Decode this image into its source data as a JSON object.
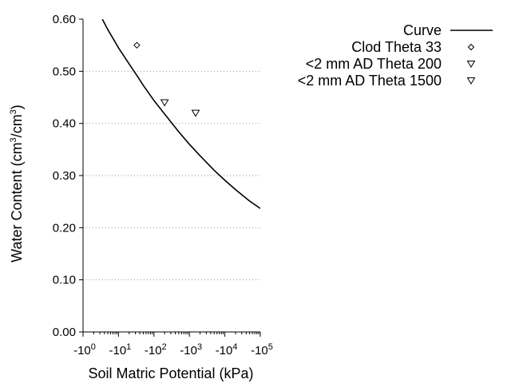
{
  "chart_data": {
    "type": "scatter",
    "xlabel": "Soil Matric Potential (kPa)",
    "ylabel": {
      "prefix": "Water Content (cm",
      "exp1": "3",
      "middle": "/cm",
      "exp2": "3",
      "suffix": ")"
    },
    "x_scale": "log",
    "xlim": [
      1,
      100000
    ],
    "ylim": [
      0,
      0.6
    ],
    "grid": "horizontal-dotted",
    "legend_position": "top-right",
    "x_ticks": [
      {
        "value": 1,
        "base": "-10",
        "exp": "0"
      },
      {
        "value": 10,
        "base": "-10",
        "exp": "1"
      },
      {
        "value": 100,
        "base": "-10",
        "exp": "2"
      },
      {
        "value": 1000,
        "base": "-10",
        "exp": "3"
      },
      {
        "value": 10000,
        "base": "-10",
        "exp": "4"
      },
      {
        "value": 100000,
        "base": "-10",
        "exp": "5"
      }
    ],
    "y_ticks": [
      {
        "value": 0.0,
        "label": "0.00"
      },
      {
        "value": 0.1,
        "label": "0.10"
      },
      {
        "value": 0.2,
        "label": "0.20"
      },
      {
        "value": 0.3,
        "label": "0.30"
      },
      {
        "value": 0.4,
        "label": "0.40"
      },
      {
        "value": 0.5,
        "label": "0.50"
      },
      {
        "value": 0.6,
        "label": "0.60"
      }
    ],
    "series": [
      {
        "name": "Curve",
        "kind": "line",
        "color": "#000000",
        "x": [
          3.5,
          5,
          10,
          20,
          33,
          50,
          100,
          200,
          500,
          1000,
          2000,
          5000,
          10000,
          20000,
          50000,
          100000
        ],
        "y": [
          0.6,
          0.58,
          0.545,
          0.514,
          0.492,
          0.473,
          0.444,
          0.418,
          0.384,
          0.36,
          0.338,
          0.31,
          0.291,
          0.273,
          0.251,
          0.237
        ]
      },
      {
        "name": "Clod Theta 33",
        "kind": "scatter",
        "marker": "diamond",
        "x": [
          33
        ],
        "y": [
          0.55
        ]
      },
      {
        "name": "<2 mm AD Theta 200",
        "kind": "scatter",
        "marker": "triangle-down",
        "x": [
          200
        ],
        "y": [
          0.44
        ]
      },
      {
        "name": "<2 mm AD Theta 1500",
        "kind": "scatter",
        "marker": "triangle-down",
        "x": [
          1500
        ],
        "y": [
          0.42
        ]
      }
    ]
  }
}
